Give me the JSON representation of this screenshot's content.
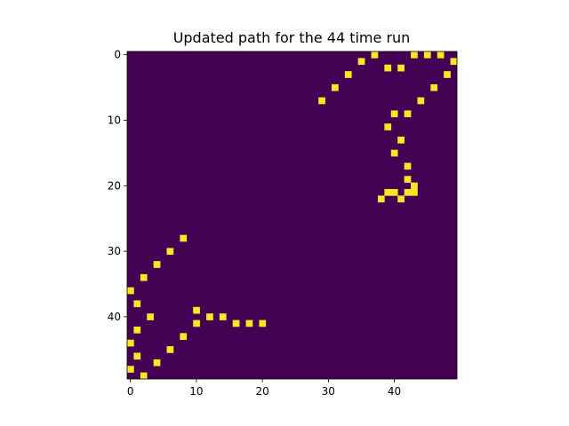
{
  "chart_data": {
    "type": "heatmap",
    "title": "Updated path for the 44 time run",
    "rows": 50,
    "cols": 50,
    "xlim": [
      -0.5,
      49.5
    ],
    "ylim": [
      49.5,
      -0.5
    ],
    "y_axis_inverted": true,
    "xticks": [
      0,
      10,
      20,
      30,
      40
    ],
    "yticks": [
      0,
      10,
      20,
      30,
      40
    ],
    "colormap": "viridis",
    "background_value": 0,
    "highlight_value": 1,
    "background_color": "#440154",
    "highlight_color": "#fde725",
    "highlighted_cells": [
      [
        43,
        0
      ],
      [
        45,
        0
      ],
      [
        47,
        0
      ],
      [
        37,
        0
      ],
      [
        35,
        1
      ],
      [
        49,
        1
      ],
      [
        39,
        2
      ],
      [
        41,
        2
      ],
      [
        33,
        3
      ],
      [
        48,
        3
      ],
      [
        31,
        5
      ],
      [
        46,
        5
      ],
      [
        29,
        7
      ],
      [
        44,
        7
      ],
      [
        40,
        9
      ],
      [
        42,
        9
      ],
      [
        39,
        11
      ],
      [
        41,
        13
      ],
      [
        40,
        15
      ],
      [
        42,
        17
      ],
      [
        42,
        19
      ],
      [
        43,
        20
      ],
      [
        39,
        21
      ],
      [
        40,
        21
      ],
      [
        42,
        21
      ],
      [
        43,
        21
      ],
      [
        38,
        22
      ],
      [
        41,
        22
      ],
      [
        8,
        28
      ],
      [
        6,
        30
      ],
      [
        4,
        32
      ],
      [
        2,
        34
      ],
      [
        0,
        36
      ],
      [
        1,
        38
      ],
      [
        10,
        39
      ],
      [
        3,
        40
      ],
      [
        12,
        40
      ],
      [
        14,
        40
      ],
      [
        10,
        41
      ],
      [
        16,
        41
      ],
      [
        18,
        41
      ],
      [
        20,
        41
      ],
      [
        1,
        42
      ],
      [
        8,
        43
      ],
      [
        0,
        44
      ],
      [
        6,
        45
      ],
      [
        1,
        46
      ],
      [
        4,
        47
      ],
      [
        0,
        48
      ],
      [
        2,
        49
      ]
    ]
  }
}
